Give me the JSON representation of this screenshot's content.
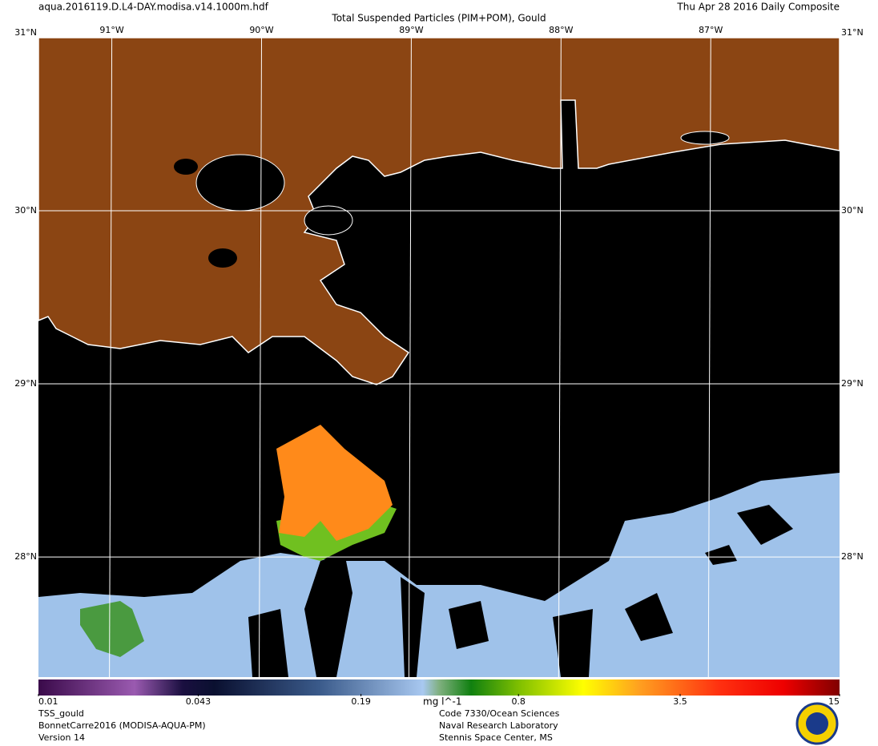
{
  "header": {
    "file": "aqua.2016119.D.L4-DAY.modisa.v14.1000m.hdf",
    "title": "Total Suspended Particles (PIM+POM), Gould",
    "date": "Thu Apr 28 2016 Daily Composite"
  },
  "map": {
    "lonlim": [
      -91.49,
      -86.14
    ],
    "latlim": [
      27.306,
      31
    ],
    "lon_ticks": [
      {
        "value": -91,
        "label": "91°W"
      },
      {
        "value": -90,
        "label": "90°W"
      },
      {
        "value": -89,
        "label": "89°W"
      },
      {
        "value": -88,
        "label": "88°W"
      },
      {
        "value": -87,
        "label": "87°W"
      }
    ],
    "lat_ticks": [
      {
        "value": 31,
        "label": "31°N"
      },
      {
        "value": 30,
        "label": "30°N"
      },
      {
        "value": 29,
        "label": "29°N"
      },
      {
        "value": 28,
        "label": "28°N"
      }
    ]
  },
  "colorbar": {
    "lim": [
      0.01,
      15
    ],
    "log": true,
    "ticks": [
      0.01,
      0.043,
      0.19,
      0.8,
      3.5,
      15
    ],
    "unit": "mg l^-1"
  },
  "footer": {
    "left": [
      "TSS_gould",
      "BonnetCarre2016 (MODISA-AQUA-PM)",
      "Version 14"
    ],
    "right": [
      "Code 7330/Ocean Sciences",
      "Naval Research Laboratory",
      "Stennis Space Center, MS"
    ]
  }
}
